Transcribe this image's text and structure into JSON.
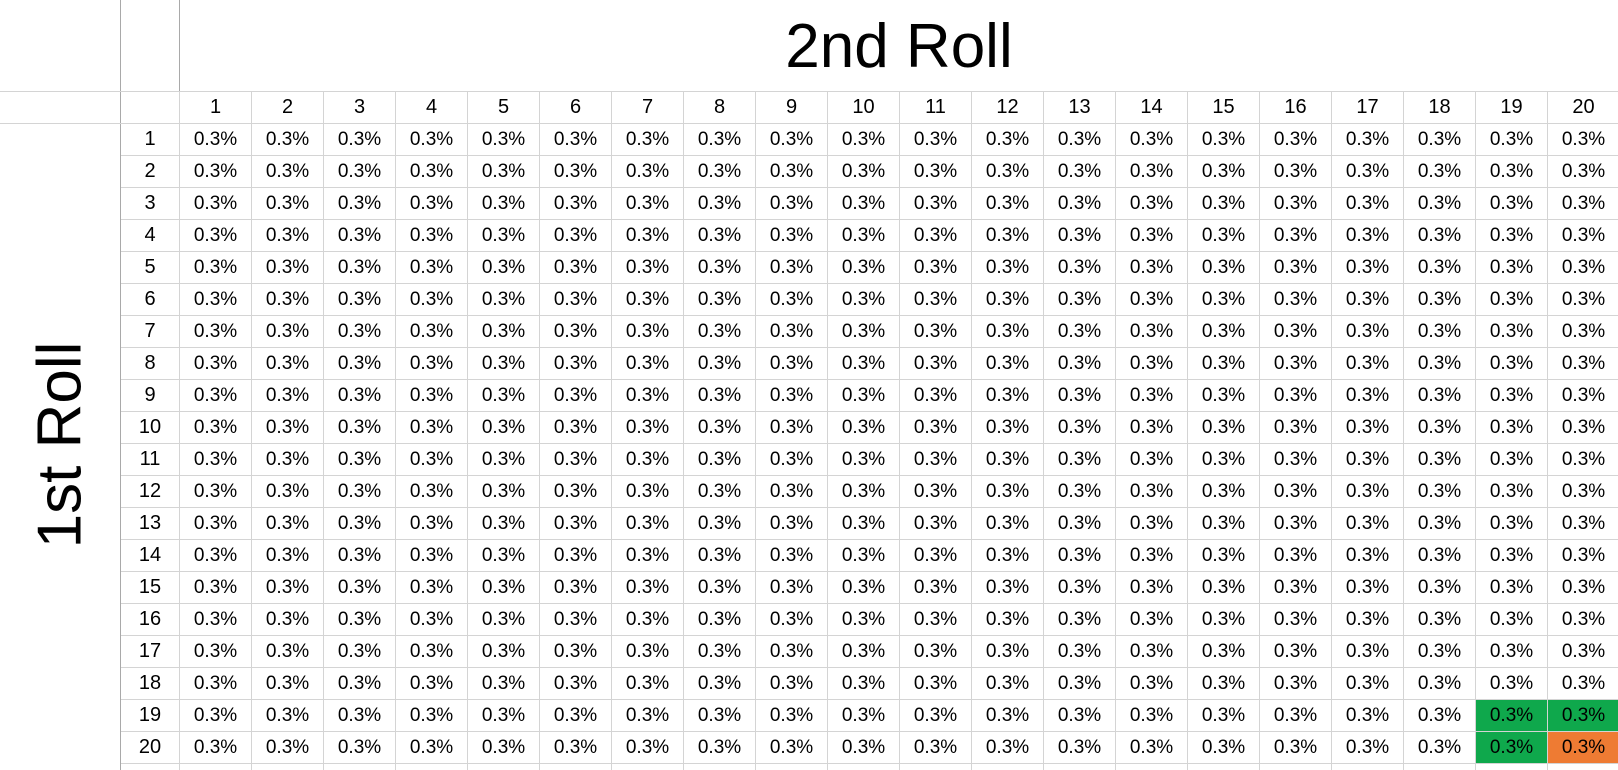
{
  "sheet": {
    "top_title": "2nd Roll",
    "side_title": "1st Roll",
    "column_headers": [
      "1",
      "2",
      "3",
      "4",
      "5",
      "6",
      "7",
      "8",
      "9",
      "10",
      "11",
      "12",
      "13",
      "14",
      "15",
      "16",
      "17",
      "18",
      "19",
      "20"
    ],
    "row_headers": [
      "1",
      "2",
      "3",
      "4",
      "5",
      "6",
      "7",
      "8",
      "9",
      "10",
      "11",
      "12",
      "13",
      "14",
      "15",
      "16",
      "17",
      "18",
      "19",
      "20"
    ],
    "cell_value": "0.3%",
    "highlights": [
      {
        "row": 19,
        "col": 19,
        "color": "#0fa84c"
      },
      {
        "row": 19,
        "col": 20,
        "color": "#0fa84c"
      },
      {
        "row": 20,
        "col": 19,
        "color": "#0fa84c"
      },
      {
        "row": 20,
        "col": 20,
        "color": "#ee7b33"
      }
    ]
  }
}
